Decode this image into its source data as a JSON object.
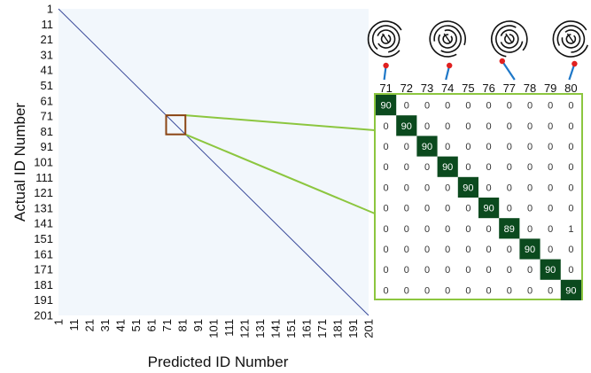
{
  "chart_data": {
    "type": "heatmap",
    "title": "",
    "xlabel": "Predicted ID Number",
    "ylabel": "Actual ID Number",
    "id_range": [
      1,
      201
    ],
    "tick_labels": [
      "1",
      "11",
      "21",
      "31",
      "41",
      "51",
      "61",
      "71",
      "81",
      "91",
      "101",
      "111",
      "121",
      "131",
      "141",
      "151",
      "161",
      "171",
      "181",
      "191",
      "201"
    ],
    "colors": {
      "background": "#f2f7fc",
      "diagonal": "#3a4a9a",
      "highlight_box": "#8b4513",
      "connector": "#8cc63f",
      "cell_high": "#0b4a1e",
      "cell_text_high": "#ffffff",
      "cell_text_low": "#333333",
      "pin_dot": "#e02020",
      "pin_line": "#1f78c8"
    },
    "zoom": {
      "ids": [
        "71",
        "72",
        "73",
        "74",
        "75",
        "76",
        "77",
        "78",
        "79",
        "80"
      ],
      "matrix": [
        [
          90,
          0,
          0,
          0,
          0,
          0,
          0,
          0,
          0,
          0
        ],
        [
          0,
          90,
          0,
          0,
          0,
          0,
          0,
          0,
          0,
          0
        ],
        [
          0,
          0,
          90,
          0,
          0,
          0,
          0,
          0,
          0,
          0
        ],
        [
          0,
          0,
          0,
          90,
          0,
          0,
          0,
          0,
          0,
          0
        ],
        [
          0,
          0,
          0,
          0,
          90,
          0,
          0,
          0,
          0,
          0
        ],
        [
          0,
          0,
          0,
          0,
          0,
          90,
          0,
          0,
          0,
          0
        ],
        [
          0,
          0,
          0,
          0,
          0,
          0,
          89,
          0,
          0,
          1
        ],
        [
          0,
          0,
          0,
          0,
          0,
          0,
          0,
          90,
          0,
          0
        ],
        [
          0,
          0,
          0,
          0,
          0,
          0,
          0,
          0,
          90,
          0
        ],
        [
          0,
          0,
          0,
          0,
          0,
          0,
          0,
          0,
          0,
          90
        ]
      ],
      "icons": [
        {
          "name": "maze-pattern-icon-71"
        },
        {
          "name": "maze-pattern-icon-74"
        },
        {
          "name": "maze-pattern-icon-77"
        },
        {
          "name": "maze-pattern-icon-80"
        }
      ]
    }
  }
}
